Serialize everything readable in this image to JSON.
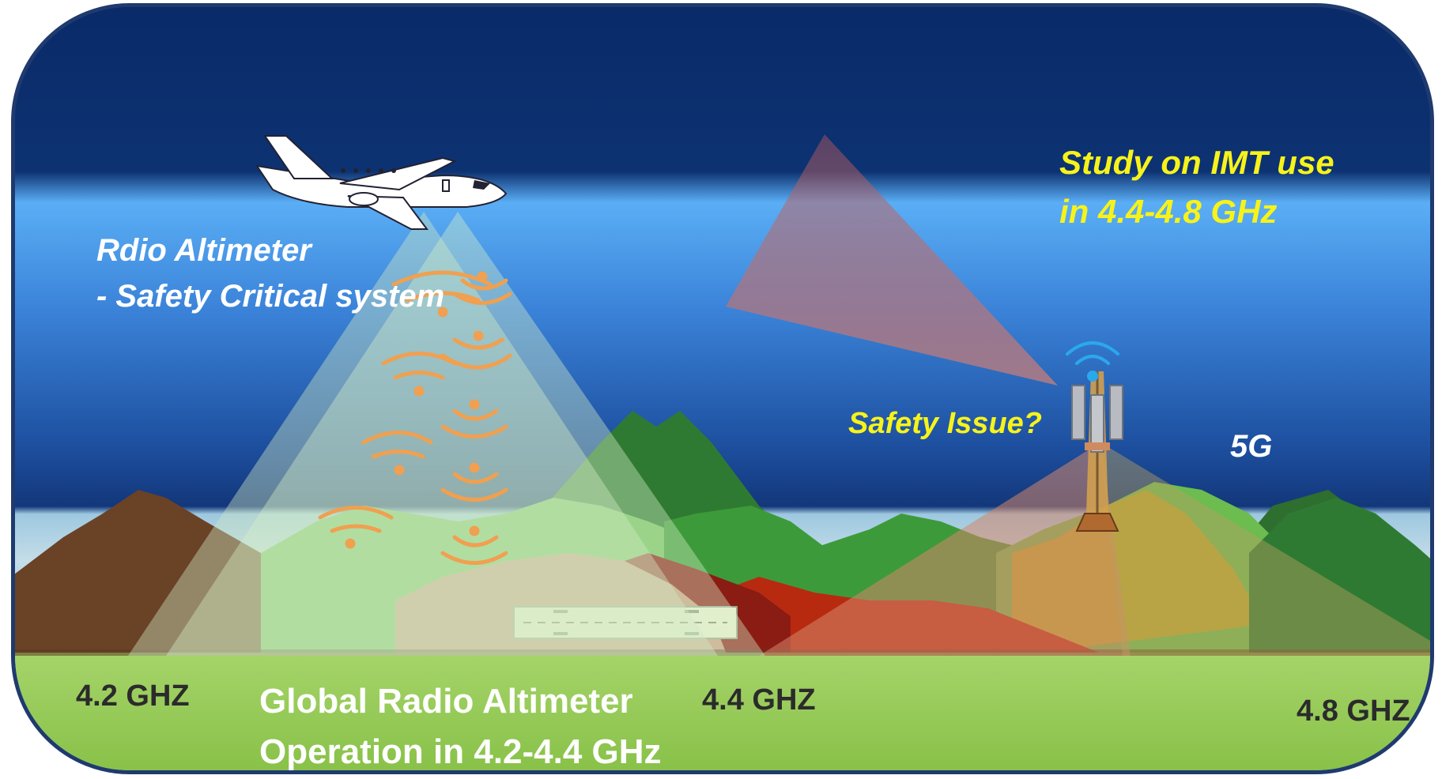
{
  "labels": {
    "radio_altimeter_line1": "Rdio Altimeter",
    "radio_altimeter_line2": "- Safety Critical system",
    "imt_study_line1": "Study on IMT use",
    "imt_study_line2": "in 4.4-4.8 GHz",
    "safety_issue": "Safety Issue?",
    "fiveg": "5G",
    "freq_42": "4.2 GHZ",
    "freq_44": "4.4 GHZ",
    "freq_48": "4.8 GHZ",
    "global_line1": "Global Radio Altimeter",
    "global_line2": "Operation in 4.2-4.4 GHz"
  },
  "colors": {
    "sky_top": "#0a2a68",
    "sky_mid": "#4f9ff0",
    "ground": "#8cc850",
    "altimeter_beam": "#cfe8c0",
    "imt_beam": "#c8645a",
    "label_yellow": "#f7f31a",
    "signal_orange": "#f0a050",
    "signal_blue": "#2aa8ee"
  },
  "icons": [
    "airplane-icon",
    "cell-tower-icon",
    "signal-waves-icon",
    "runway-icon"
  ]
}
